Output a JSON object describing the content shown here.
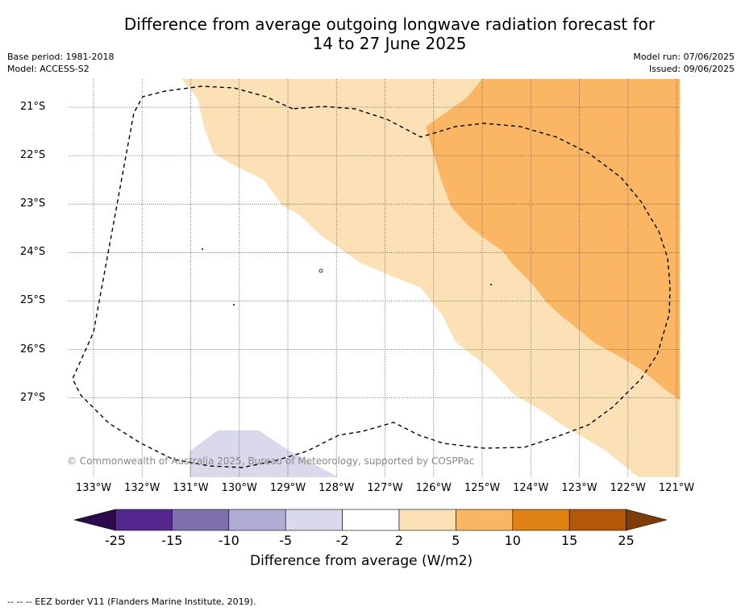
{
  "title_line1": "Difference from average outgoing longwave radiation forecast for",
  "title_line2": "14 to 27 June 2025",
  "base_period": "Base period: 1981-2018",
  "model": "Model: ACCESS-S2",
  "model_run": "Model run: 07/06/2025",
  "issued": "Issued: 09/06/2025",
  "map": {
    "x_ticks": [
      "133°W",
      "132°W",
      "131°W",
      "130°W",
      "129°W",
      "128°W",
      "127°W",
      "126°W",
      "125°W",
      "124°W",
      "123°W",
      "122°W",
      "121°W"
    ],
    "y_ticks": [
      "21°S",
      "22°S",
      "23°S",
      "24°S",
      "25°S",
      "26°S",
      "27°S"
    ],
    "copyright": "© Commonwealth of Australia 2025, Bureau of Meteorology, supported by COSPPac"
  },
  "colorbar": {
    "labels": [
      "-25",
      "-15",
      "-10",
      "-5",
      "-2",
      "2",
      "5",
      "10",
      "15",
      "25"
    ],
    "colors": [
      "#2d0a4e",
      "#54278f",
      "#7e70ad",
      "#b1acd3",
      "#d9d9eb",
      "#ffffff",
      "#fde1b6",
      "#fbb663",
      "#e08213",
      "#b35806",
      "#7f3b08"
    ],
    "title": "Difference from average (W/m2)"
  },
  "footer": "--  --  -- EEZ border V11 (Flanders Marine Institute, 2019)."
}
